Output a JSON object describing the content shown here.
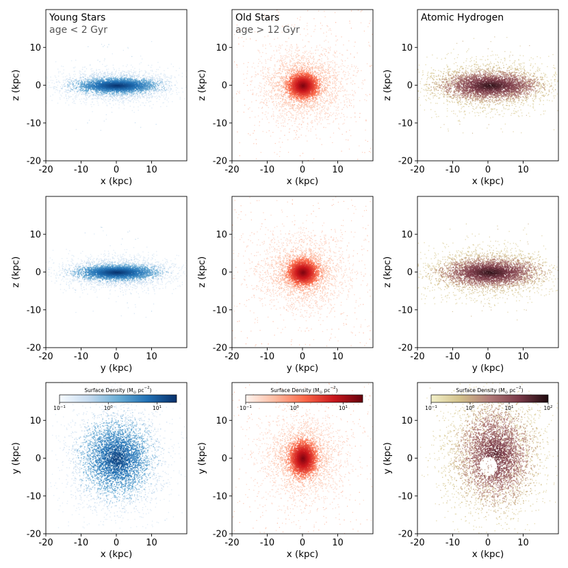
{
  "chart_data": {
    "type": "heatmap",
    "grid": false,
    "axes": {
      "x_ticks": [
        -20,
        -10,
        0,
        10
      ],
      "y_ticks": [
        -20,
        -10,
        0,
        10
      ],
      "range": [
        -20,
        20
      ]
    },
    "colorbar": {
      "label": "Surface Density (M",
      "label_sub": "⊙",
      "label_tail": " pc",
      "label_sup": "−2",
      "label_end": ")",
      "placement": "top"
    },
    "columns": [
      {
        "title": "Young Stars",
        "subtitle": "age < 2 Gyr",
        "colormap": "Blues",
        "colors": [
          "#f7fbff",
          "#c6dbef",
          "#6baed6",
          "#2171b5",
          "#08306b"
        ],
        "colorbar_ticks": [
          {
            "base": "10",
            "exp": "−1"
          },
          {
            "base": "10",
            "exp": "0"
          },
          {
            "base": "10",
            "exp": "1"
          }
        ],
        "colorbar_range_log10": [
          -1,
          1.4
        ]
      },
      {
        "title": "Old Stars",
        "subtitle": "age > 12 Gyr",
        "colormap": "Reds",
        "colors": [
          "#fff5f0",
          "#fcbba1",
          "#fb6a4a",
          "#cb181d",
          "#67000d"
        ],
        "colorbar_ticks": [
          {
            "base": "10",
            "exp": "−1"
          },
          {
            "base": "10",
            "exp": "0"
          },
          {
            "base": "10",
            "exp": "1"
          }
        ],
        "colorbar_range_log10": [
          -1,
          1.4
        ]
      },
      {
        "title": "Atomic Hydrogen",
        "subtitle": "",
        "colormap": "pink_r",
        "colors": [
          "#f2f0c8",
          "#d2c08a",
          "#b07a78",
          "#7a3a48",
          "#1e0a0e"
        ],
        "colorbar_ticks": [
          {
            "base": "10",
            "exp": "−1"
          },
          {
            "base": "10",
            "exp": "0"
          },
          {
            "base": "10",
            "exp": "1"
          },
          {
            "base": "10",
            "exp": "2"
          }
        ],
        "colorbar_range_log10": [
          -1,
          2
        ]
      }
    ],
    "rows": [
      {
        "xlabel": "x (kpc)",
        "ylabel": "z (kpc)",
        "projection": "edge-on"
      },
      {
        "xlabel": "y (kpc)",
        "ylabel": "z (kpc)",
        "projection": "edge-on"
      },
      {
        "xlabel": "x (kpc)",
        "ylabel": "y (kpc)",
        "projection": "face-on"
      }
    ]
  }
}
